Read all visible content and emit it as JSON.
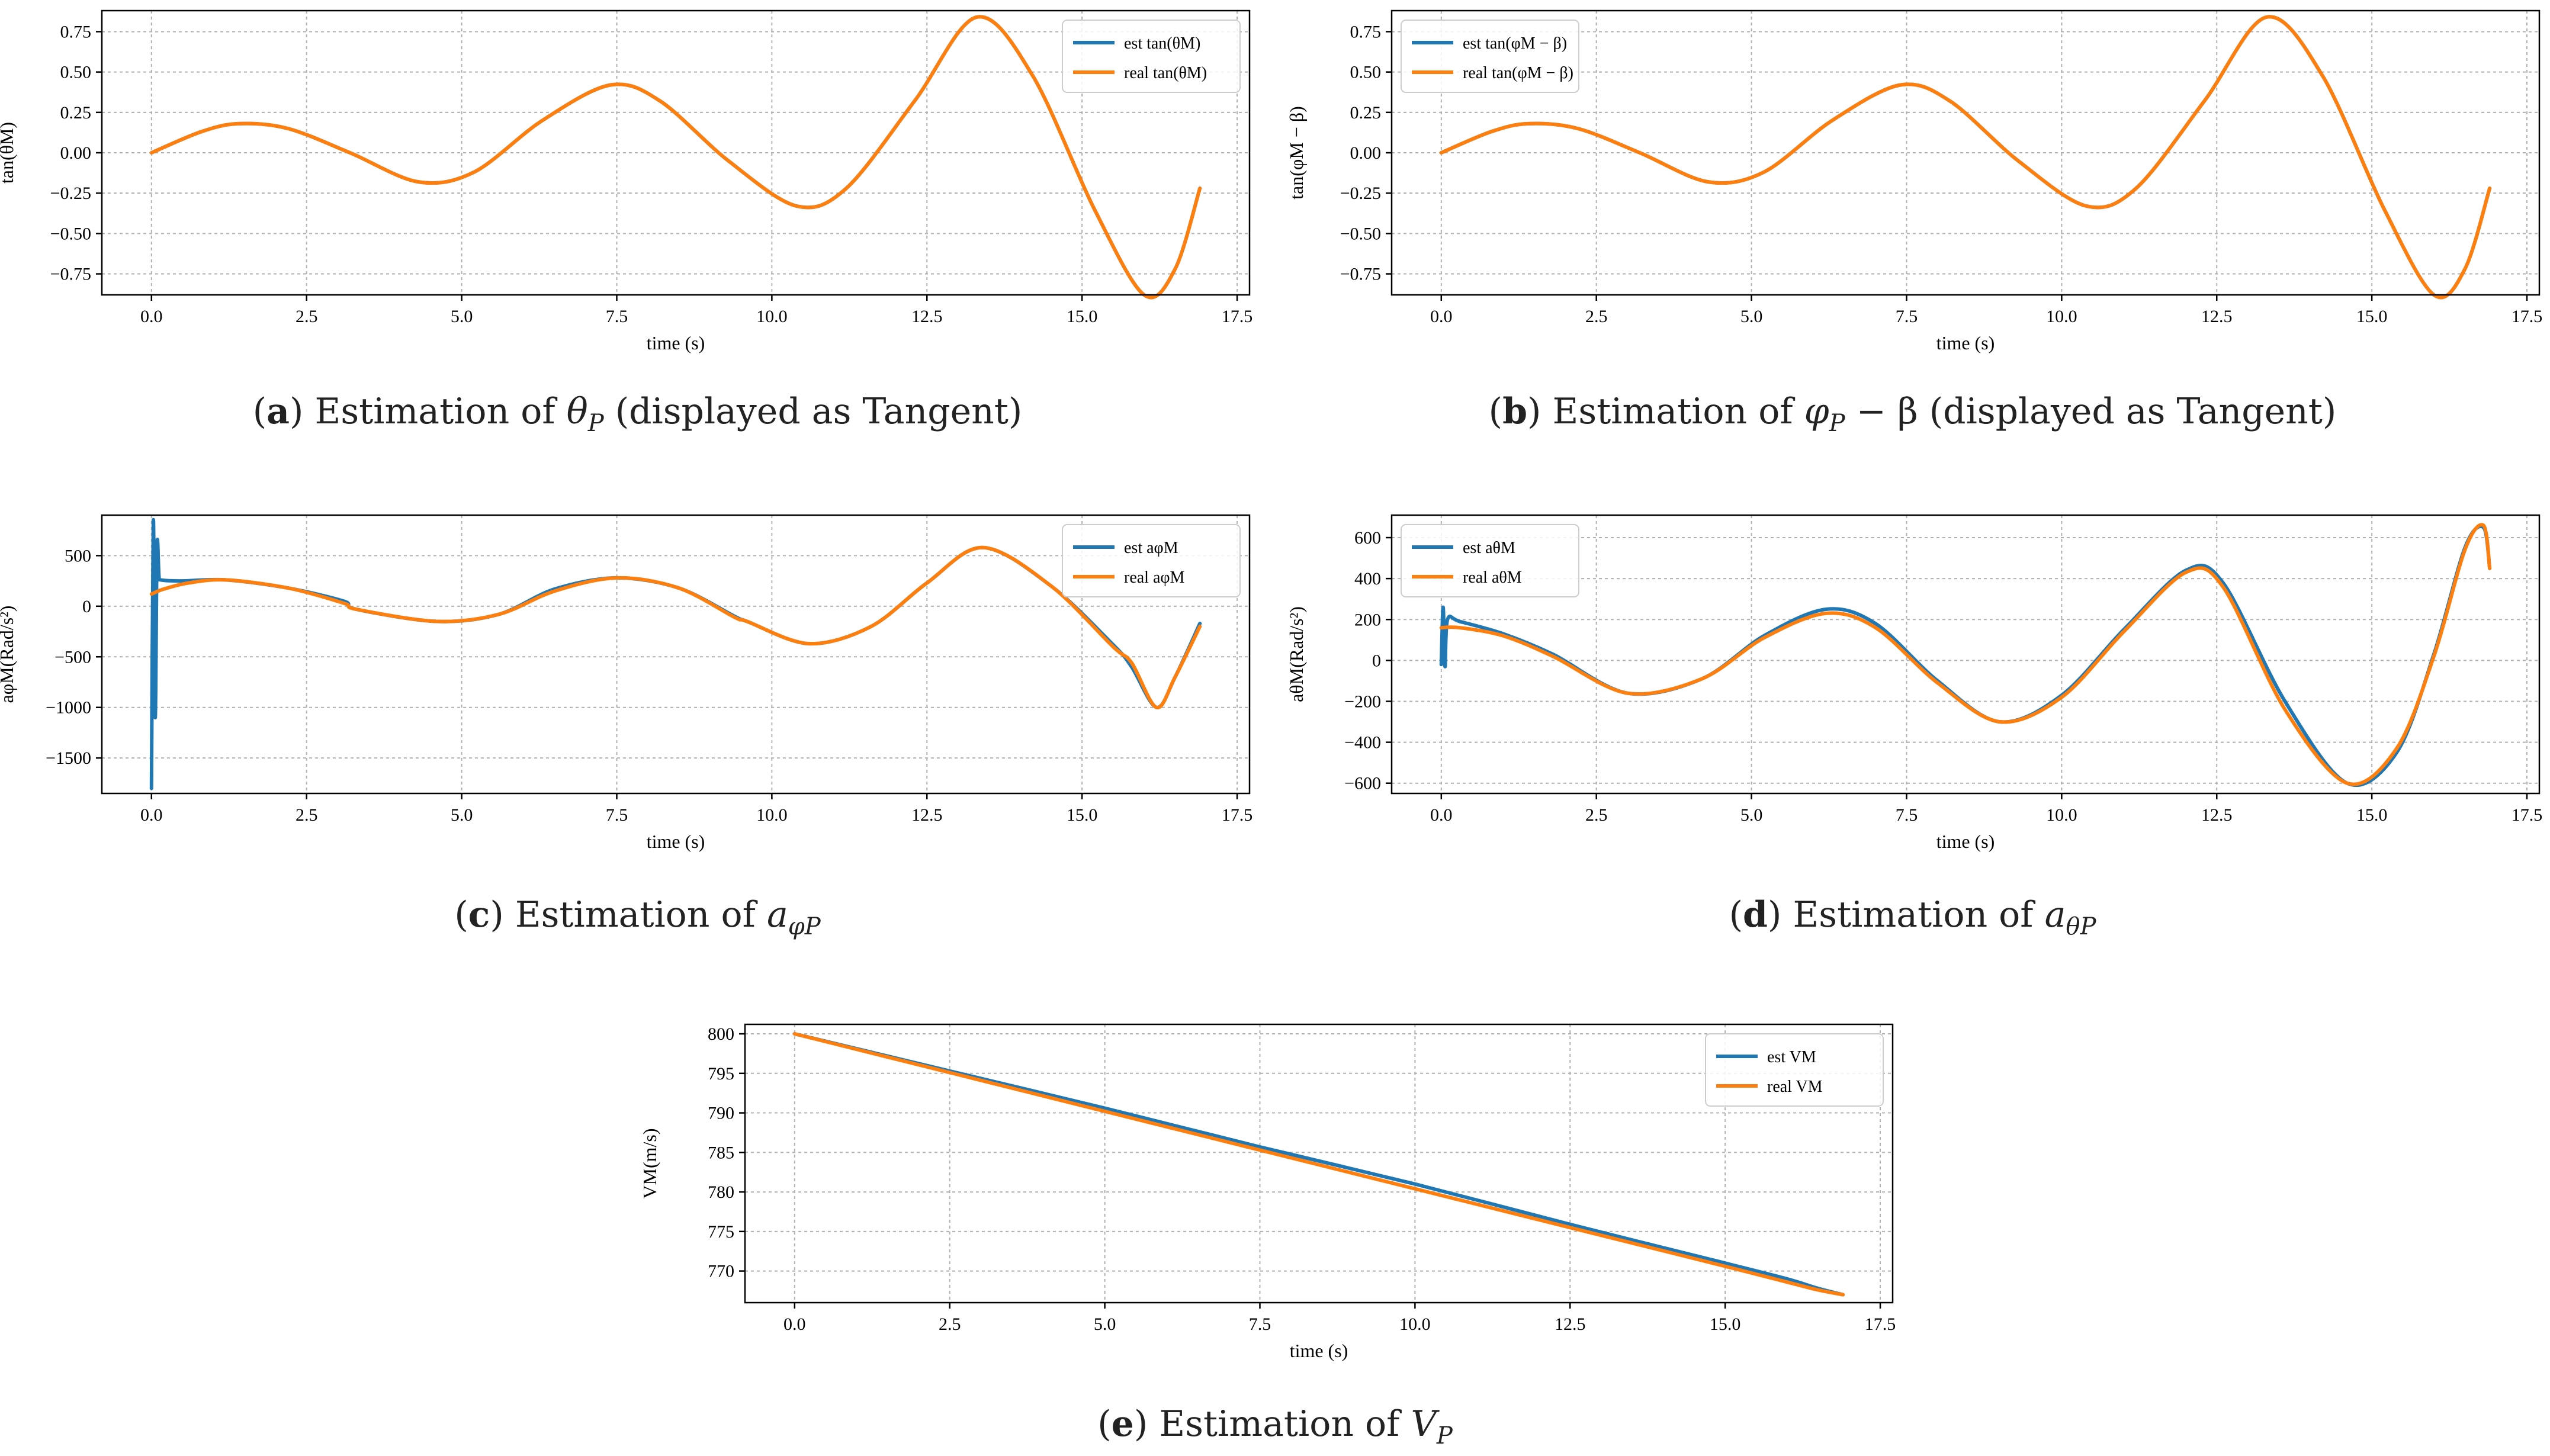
{
  "figure": {
    "colors": {
      "est": "#1f77b4",
      "real": "#ff7f0e",
      "grid": "#b0b0b0"
    },
    "captions": [
      {
        "label": "a",
        "prefix": "Estimation of ",
        "sym": "θ",
        "sub": "P",
        "suffix": " (displayed as Tangent)"
      },
      {
        "label": "b",
        "prefix": "Estimation of ",
        "sym": "φ",
        "sub": "P",
        "suffix": " − β (displayed as Tangent)"
      },
      {
        "label": "c",
        "prefix": "Estimation of ",
        "sym": "a",
        "sub": "φP",
        "suffix": ""
      },
      {
        "label": "d",
        "prefix": "Estimation of ",
        "sym": "a",
        "sub": "θP",
        "suffix": ""
      },
      {
        "label": "e",
        "prefix": "Estimation of ",
        "sym": "V",
        "sub": "P",
        "suffix": ""
      }
    ]
  },
  "chart_data": [
    {
      "id": "a",
      "type": "line",
      "title": "",
      "xlabel": "time (s)",
      "ylabel": "tan(θM)",
      "xlim": [
        -0.8,
        17.7
      ],
      "ylim": [
        -0.88,
        0.88
      ],
      "xticks": [
        0,
        2.5,
        5,
        7.5,
        10,
        12.5,
        15,
        17.5
      ],
      "xtick_labels": [
        "0.0",
        "2.5",
        "5.0",
        "7.5",
        "10.0",
        "12.5",
        "15.0",
        "17.5"
      ],
      "yticks": [
        -0.75,
        -0.5,
        -0.25,
        0,
        0.25,
        0.5,
        0.75
      ],
      "ytick_labels": [
        "−0.75",
        "−0.50",
        "−0.25",
        "0.00",
        "0.25",
        "0.50",
        "0.75"
      ],
      "grid": true,
      "legend": "top-right",
      "series": [
        {
          "name": "est tan(θM)",
          "color_key": "est",
          "x": [
            0,
            0.8,
            1.4,
            2.2,
            3.2,
            4.3,
            5.2,
            6.3,
            7.4,
            8.2,
            9.3,
            10.4,
            11.2,
            12.3,
            13.3,
            14.2,
            15.2,
            16.0,
            16.5,
            16.9
          ],
          "y": [
            0,
            0.13,
            0.18,
            0.15,
            0.0,
            -0.18,
            -0.12,
            0.2,
            0.42,
            0.32,
            -0.05,
            -0.33,
            -0.22,
            0.32,
            0.84,
            0.48,
            -0.35,
            -0.88,
            -0.72,
            -0.22
          ]
        },
        {
          "name": "real tan(θM)",
          "color_key": "real",
          "x": [
            0,
            0.8,
            1.4,
            2.2,
            3.2,
            4.3,
            5.2,
            6.3,
            7.4,
            8.2,
            9.3,
            10.4,
            11.2,
            12.3,
            13.3,
            14.2,
            15.2,
            16.0,
            16.5,
            16.9
          ],
          "y": [
            0,
            0.13,
            0.18,
            0.15,
            0.0,
            -0.18,
            -0.12,
            0.2,
            0.42,
            0.32,
            -0.05,
            -0.33,
            -0.22,
            0.32,
            0.84,
            0.48,
            -0.35,
            -0.88,
            -0.72,
            -0.22
          ]
        }
      ]
    },
    {
      "id": "b",
      "type": "line",
      "title": "",
      "xlabel": "time (s)",
      "ylabel": "tan(φM − β)",
      "xlim": [
        -0.8,
        17.7
      ],
      "ylim": [
        -0.88,
        0.88
      ],
      "xticks": [
        0,
        2.5,
        5,
        7.5,
        10,
        12.5,
        15,
        17.5
      ],
      "xtick_labels": [
        "0.0",
        "2.5",
        "5.0",
        "7.5",
        "10.0",
        "12.5",
        "15.0",
        "17.5"
      ],
      "yticks": [
        -0.75,
        -0.5,
        -0.25,
        0,
        0.25,
        0.5,
        0.75
      ],
      "ytick_labels": [
        "−0.75",
        "−0.50",
        "−0.25",
        "0.00",
        "0.25",
        "0.50",
        "0.75"
      ],
      "grid": true,
      "legend": "top-left",
      "series": [
        {
          "name": "est tan(φM − β)",
          "color_key": "est",
          "x": [
            0,
            0.8,
            1.4,
            2.2,
            3.2,
            4.3,
            5.2,
            6.3,
            7.4,
            8.2,
            9.3,
            10.4,
            11.2,
            12.3,
            13.3,
            14.2,
            15.2,
            16.0,
            16.5,
            16.9
          ],
          "y": [
            0,
            0.13,
            0.18,
            0.15,
            0.0,
            -0.18,
            -0.12,
            0.2,
            0.42,
            0.32,
            -0.05,
            -0.33,
            -0.22,
            0.32,
            0.84,
            0.48,
            -0.35,
            -0.88,
            -0.72,
            -0.22
          ]
        },
        {
          "name": "real tan(φM − β)",
          "color_key": "real",
          "x": [
            0,
            0.8,
            1.4,
            2.2,
            3.2,
            4.3,
            5.2,
            6.3,
            7.4,
            8.2,
            9.3,
            10.4,
            11.2,
            12.3,
            13.3,
            14.2,
            15.2,
            16.0,
            16.5,
            16.9
          ],
          "y": [
            0,
            0.13,
            0.18,
            0.15,
            0.0,
            -0.18,
            -0.12,
            0.2,
            0.42,
            0.32,
            -0.05,
            -0.33,
            -0.22,
            0.32,
            0.84,
            0.48,
            -0.35,
            -0.88,
            -0.72,
            -0.22
          ]
        }
      ]
    },
    {
      "id": "c",
      "type": "line",
      "title": "",
      "xlabel": "time (s)",
      "ylabel": "aφM(Rad/s²)",
      "xlim": [
        -0.8,
        17.7
      ],
      "ylim": [
        -1850,
        900
      ],
      "xticks": [
        0,
        2.5,
        5,
        7.5,
        10,
        12.5,
        15,
        17.5
      ],
      "xtick_labels": [
        "0.0",
        "2.5",
        "5.0",
        "7.5",
        "10.0",
        "12.5",
        "15.0",
        "17.5"
      ],
      "yticks": [
        -1500,
        -1000,
        -500,
        0,
        500
      ],
      "ytick_labels": [
        "−1500",
        "−1000",
        "−500",
        "0",
        "500"
      ],
      "grid": true,
      "legend": "top-right",
      "series": [
        {
          "name": "est aφM",
          "color_key": "est",
          "x": [
            0,
            0.03,
            0.06,
            0.09,
            0.12,
            0.15,
            0.5,
            1.2,
            2.2,
            3.1,
            3.3,
            4.6,
            5.6,
            6.5,
            7.5,
            8.5,
            9.4,
            9.6,
            10.6,
            11.6,
            12.5,
            13.4,
            14.5,
            15.5,
            15.8,
            16.2,
            16.5,
            16.9
          ],
          "y": [
            -1800,
            850,
            -1100,
            600,
            300,
            260,
            250,
            260,
            180,
            50,
            -30,
            -150,
            -80,
            170,
            280,
            180,
            -100,
            -150,
            -370,
            -200,
            230,
            580,
            200,
            -380,
            -600,
            -1000,
            -700,
            -170
          ]
        },
        {
          "name": "real aφM",
          "color_key": "real",
          "x": [
            0,
            0.2,
            0.6,
            1.2,
            2.2,
            3.1,
            3.3,
            4.6,
            5.6,
            6.5,
            7.5,
            8.5,
            9.4,
            9.6,
            10.6,
            11.6,
            12.5,
            13.4,
            14.5,
            15.5,
            15.8,
            16.2,
            16.5,
            16.9
          ],
          "y": [
            120,
            170,
            230,
            260,
            180,
            30,
            -30,
            -150,
            -80,
            150,
            280,
            180,
            -110,
            -150,
            -370,
            -200,
            230,
            580,
            200,
            -400,
            -560,
            -1000,
            -700,
            -200
          ]
        }
      ]
    },
    {
      "id": "d",
      "type": "line",
      "title": "",
      "xlabel": "time (s)",
      "ylabel": "aθM(Rad/s²)",
      "xlim": [
        -0.8,
        17.7
      ],
      "ylim": [
        -650,
        710
      ],
      "xticks": [
        0,
        2.5,
        5,
        7.5,
        10,
        12.5,
        15,
        17.5
      ],
      "xtick_labels": [
        "0.0",
        "2.5",
        "5.0",
        "7.5",
        "10.0",
        "12.5",
        "15.0",
        "17.5"
      ],
      "yticks": [
        -600,
        -400,
        -200,
        0,
        200,
        400,
        600
      ],
      "ytick_labels": [
        "−600",
        "−400",
        "−200",
        "0",
        "200",
        "400",
        "600"
      ],
      "grid": true,
      "legend": "top-left",
      "series": [
        {
          "name": "est aθM",
          "color_key": "est",
          "x": [
            0,
            0.03,
            0.06,
            0.1,
            0.3,
            1.0,
            1.8,
            3.0,
            4.2,
            5.2,
            6.2,
            7.0,
            8.0,
            9.0,
            10.0,
            11.0,
            12.0,
            12.6,
            13.6,
            14.6,
            15.4,
            16.0,
            16.5,
            16.8,
            16.9
          ],
          "y": [
            -20,
            260,
            -30,
            200,
            190,
            130,
            30,
            -160,
            -90,
            120,
            250,
            180,
            -100,
            -300,
            -170,
            150,
            440,
            380,
            -200,
            -600,
            -450,
            30,
            550,
            650,
            450
          ]
        },
        {
          "name": "real aθM",
          "color_key": "real",
          "x": [
            0,
            0.3,
            1.0,
            1.8,
            3.0,
            4.2,
            5.2,
            6.2,
            7.0,
            8.0,
            9.0,
            10.0,
            11.0,
            12.0,
            12.6,
            13.6,
            14.6,
            15.4,
            16.0,
            16.5,
            16.8,
            16.9
          ],
          "y": [
            160,
            160,
            120,
            20,
            -160,
            -90,
            110,
            230,
            160,
            -110,
            -300,
            -180,
            140,
            430,
            360,
            -240,
            -600,
            -430,
            20,
            540,
            660,
            450
          ]
        }
      ]
    },
    {
      "id": "e",
      "type": "line",
      "title": "",
      "xlabel": "time (s)",
      "ylabel": "VM(m/s)",
      "xlim": [
        -0.8,
        17.7
      ],
      "ylim": [
        766,
        801.2
      ],
      "xticks": [
        0,
        2.5,
        5,
        7.5,
        10,
        12.5,
        15,
        17.5
      ],
      "xtick_labels": [
        "0.0",
        "2.5",
        "5.0",
        "7.5",
        "10.0",
        "12.5",
        "15.0",
        "17.5"
      ],
      "yticks": [
        770,
        775,
        780,
        785,
        790,
        795,
        800
      ],
      "ytick_labels": [
        "770",
        "775",
        "780",
        "785",
        "790",
        "795",
        "800"
      ],
      "grid": true,
      "legend": "top-right",
      "series": [
        {
          "name": "est VM",
          "color_key": "est",
          "x": [
            0,
            2.5,
            5,
            7.5,
            10,
            12.5,
            15,
            16.0,
            16.5,
            16.9
          ],
          "y": [
            800,
            795.3,
            790.6,
            785.7,
            781.0,
            775.9,
            771.0,
            769.0,
            767.8,
            767.0
          ]
        },
        {
          "name": "real VM",
          "color_key": "real",
          "x": [
            0,
            2.5,
            5,
            7.5,
            10,
            12.5,
            15,
            16.0,
            16.5,
            16.9
          ],
          "y": [
            800,
            795.1,
            790.2,
            785.3,
            780.4,
            775.5,
            770.6,
            768.6,
            767.6,
            767.0
          ]
        }
      ]
    }
  ]
}
